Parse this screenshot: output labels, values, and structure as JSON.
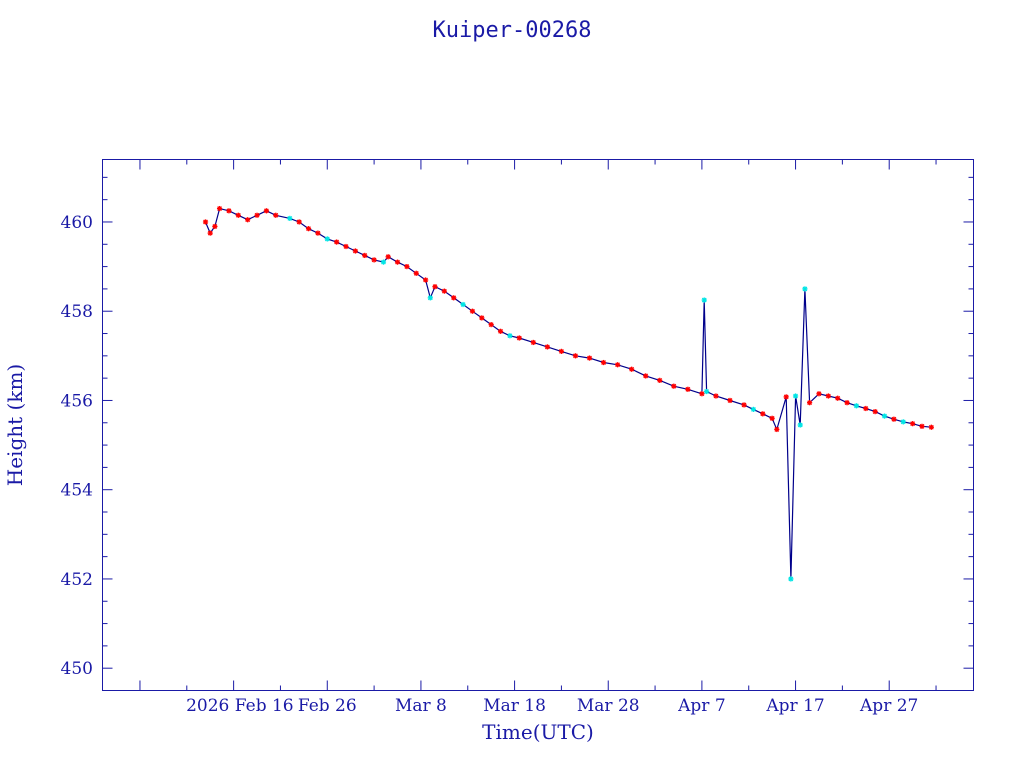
{
  "chart_data": {
    "type": "line",
    "title": "Kuiper-00268",
    "xlabel": "Time(UTC)",
    "ylabel": "Height (km)",
    "x_tick_labels": [
      "2026 Feb 16",
      "Feb 26",
      "Mar  8",
      "Mar 18",
      "Mar 28",
      "Apr  7",
      "Apr 17",
      "Apr 27"
    ],
    "y_tick_labels": [
      "450",
      "452",
      "454",
      "456",
      "458",
      "460"
    ],
    "xlim": [
      "2026-02-02",
      "2026-05-06"
    ],
    "ylim": [
      449.5,
      461.4
    ],
    "grid": false,
    "colors": {
      "line": "#00008b",
      "marker_red": "#ff0000",
      "marker_cyan": "#00e5e5",
      "axes": "#1a1aa6"
    },
    "series": [
      {
        "points": [
          [
            "2026-02-13T00:00",
            460.0,
            "red"
          ],
          [
            "2026-02-13T12:00",
            459.75,
            "red"
          ],
          [
            "2026-02-14T00:00",
            459.9,
            "red"
          ],
          [
            "2026-02-14T12:00",
            460.3,
            "red"
          ],
          [
            "2026-02-15T12:00",
            460.25,
            "red"
          ],
          [
            "2026-02-16T12:00",
            460.15,
            "red"
          ],
          [
            "2026-02-17T12:00",
            460.05,
            "red"
          ],
          [
            "2026-02-18T12:00",
            460.15,
            "red"
          ],
          [
            "2026-02-19T12:00",
            460.25,
            "red"
          ],
          [
            "2026-02-20T12:00",
            460.15,
            "red"
          ],
          [
            "2026-02-22T00:00",
            460.08,
            "cyan"
          ],
          [
            "2026-02-23T00:00",
            460.0,
            "red"
          ],
          [
            "2026-02-24T00:00",
            459.85,
            "red"
          ],
          [
            "2026-02-25T00:00",
            459.75,
            "red"
          ],
          [
            "2026-02-26T00:00",
            459.62,
            "cyan"
          ],
          [
            "2026-02-27T00:00",
            459.55,
            "red"
          ],
          [
            "2026-02-28T00:00",
            459.45,
            "red"
          ],
          [
            "2026-03-01T00:00",
            459.35,
            "red"
          ],
          [
            "2026-03-02T00:00",
            459.25,
            "red"
          ],
          [
            "2026-03-03T00:00",
            459.15,
            "red"
          ],
          [
            "2026-03-04T00:00",
            459.1,
            "cyan"
          ],
          [
            "2026-03-04T12:00",
            459.22,
            "red"
          ],
          [
            "2026-03-05T12:00",
            459.1,
            "red"
          ],
          [
            "2026-03-06T12:00",
            459.0,
            "red"
          ],
          [
            "2026-03-07T12:00",
            458.85,
            "red"
          ],
          [
            "2026-03-08T12:00",
            458.7,
            "red"
          ],
          [
            "2026-03-09T00:00",
            458.3,
            "cyan"
          ],
          [
            "2026-03-09T12:00",
            458.55,
            "red"
          ],
          [
            "2026-03-10T12:00",
            458.45,
            "red"
          ],
          [
            "2026-03-11T12:00",
            458.3,
            "red"
          ],
          [
            "2026-03-12T12:00",
            458.15,
            "cyan"
          ],
          [
            "2026-03-13T12:00",
            458.0,
            "red"
          ],
          [
            "2026-03-14T12:00",
            457.85,
            "red"
          ],
          [
            "2026-03-15T12:00",
            457.7,
            "red"
          ],
          [
            "2026-03-16T12:00",
            457.55,
            "red"
          ],
          [
            "2026-03-17T12:00",
            457.45,
            "cyan"
          ],
          [
            "2026-03-18T12:00",
            457.4,
            "red"
          ],
          [
            "2026-03-20T00:00",
            457.3,
            "red"
          ],
          [
            "2026-03-21T12:00",
            457.2,
            "red"
          ],
          [
            "2026-03-23T00:00",
            457.1,
            "red"
          ],
          [
            "2026-03-24T12:00",
            457.0,
            "red"
          ],
          [
            "2026-03-26T00:00",
            456.95,
            "red"
          ],
          [
            "2026-03-27T12:00",
            456.85,
            "red"
          ],
          [
            "2026-03-29T00:00",
            456.8,
            "red"
          ],
          [
            "2026-03-30T12:00",
            456.7,
            "red"
          ],
          [
            "2026-04-01T00:00",
            456.55,
            "red"
          ],
          [
            "2026-04-02T12:00",
            456.45,
            "red"
          ],
          [
            "2026-04-04T00:00",
            456.32,
            "red"
          ],
          [
            "2026-04-05T12:00",
            456.25,
            "red"
          ],
          [
            "2026-04-07T00:00",
            456.15,
            "red"
          ],
          [
            "2026-04-07T06:00",
            458.25,
            "cyan"
          ],
          [
            "2026-04-07T12:00",
            456.2,
            "cyan"
          ],
          [
            "2026-04-08T12:00",
            456.1,
            "red"
          ],
          [
            "2026-04-10T00:00",
            456.0,
            "red"
          ],
          [
            "2026-04-11T12:00",
            455.9,
            "red"
          ],
          [
            "2026-04-12T12:00",
            455.8,
            "cyan"
          ],
          [
            "2026-04-13T12:00",
            455.7,
            "red"
          ],
          [
            "2026-04-14T12:00",
            455.6,
            "red"
          ],
          [
            "2026-04-15T00:00",
            455.35,
            "red"
          ],
          [
            "2026-04-16T00:00",
            456.08,
            "red"
          ],
          [
            "2026-04-16T12:00",
            452.0,
            "cyan"
          ],
          [
            "2026-04-17T00:00",
            456.1,
            "cyan"
          ],
          [
            "2026-04-17T12:00",
            455.45,
            "cyan"
          ],
          [
            "2026-04-18T00:00",
            458.5,
            "cyan"
          ],
          [
            "2026-04-18T12:00",
            455.95,
            "red"
          ],
          [
            "2026-04-19T12:00",
            456.15,
            "red"
          ],
          [
            "2026-04-20T12:00",
            456.1,
            "red"
          ],
          [
            "2026-04-21T12:00",
            456.05,
            "red"
          ],
          [
            "2026-04-22T12:00",
            455.95,
            "red"
          ],
          [
            "2026-04-23T12:00",
            455.88,
            "cyan"
          ],
          [
            "2026-04-24T12:00",
            455.82,
            "red"
          ],
          [
            "2026-04-25T12:00",
            455.75,
            "red"
          ],
          [
            "2026-04-26T12:00",
            455.65,
            "cyan"
          ],
          [
            "2026-04-27T12:00",
            455.58,
            "red"
          ],
          [
            "2026-04-28T12:00",
            455.52,
            "cyan"
          ],
          [
            "2026-04-29T12:00",
            455.48,
            "red"
          ],
          [
            "2026-04-30T12:00",
            455.42,
            "red"
          ],
          [
            "2026-05-01T12:00",
            455.4,
            "red"
          ]
        ]
      }
    ]
  }
}
